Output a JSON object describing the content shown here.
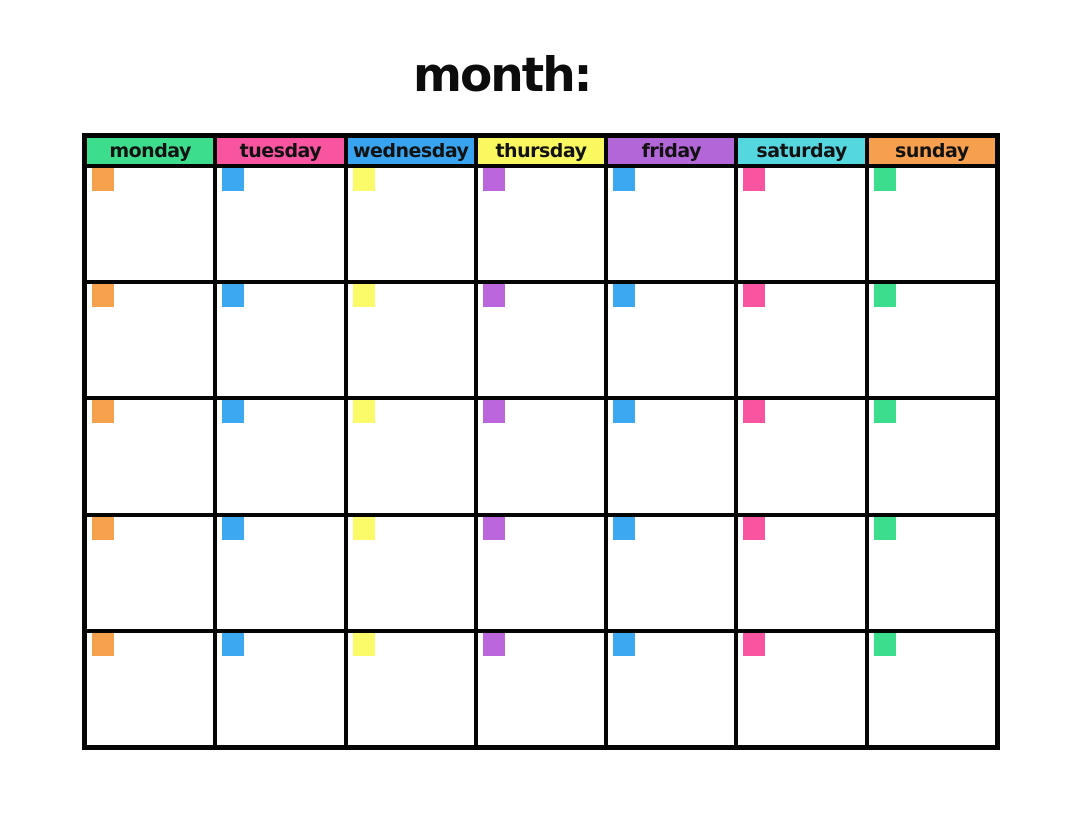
{
  "page": {
    "title": "month:",
    "background_color": "#ffffff"
  },
  "calendar": {
    "grid_border_color": "#050505",
    "cell_background_color": "#ffffff",
    "header_text_color": "#121212",
    "row_count": 5,
    "columns": [
      {
        "day": "monday",
        "header_color": "#3cde8d",
        "square_color": "#f6a14e"
      },
      {
        "day": "tuesday",
        "header_color": "#f9549f",
        "square_color": "#3da8f2"
      },
      {
        "day": "wednesday",
        "header_color": "#38a4ef",
        "square_color": "#fbfa68"
      },
      {
        "day": "thursday",
        "header_color": "#f9f85e",
        "square_color": "#bb66dd"
      },
      {
        "day": "friday",
        "header_color": "#b366d8",
        "square_color": "#3da8f2"
      },
      {
        "day": "saturday",
        "header_color": "#55d7e0",
        "square_color": "#f9549f"
      },
      {
        "day": "sunday",
        "header_color": "#f6a04f",
        "square_color": "#3cde8d"
      }
    ]
  }
}
